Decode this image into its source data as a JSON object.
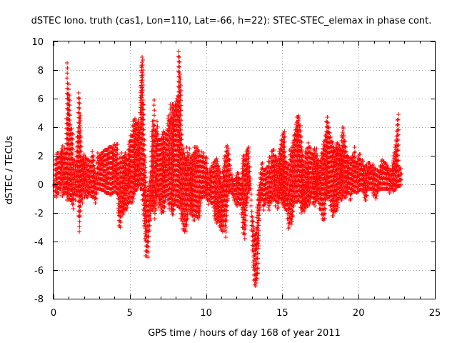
{
  "chart_data": {
    "type": "scatter",
    "title": "dSTEC Iono. truth (cas1, Lon=110, Lat=-66, h=22): STEC-STEC_elemax in phase cont.",
    "xlabel": "GPS time / hours of day 168 of year 2011",
    "ylabel": "dSTEC  / TECUs",
    "xlim": [
      0,
      25
    ],
    "ylim": [
      -8,
      10
    ],
    "x_ticks": [
      0,
      5,
      10,
      15,
      20,
      25
    ],
    "x_tick_labels": [
      "0",
      "5",
      "10",
      "15",
      "20",
      "25"
    ],
    "y_ticks": [
      -8,
      -6,
      -4,
      -2,
      0,
      2,
      4,
      6,
      8,
      10
    ],
    "y_tick_labels": [
      "-8",
      "-6",
      "-4",
      "-2",
      "0",
      "2",
      "4",
      "6",
      "8",
      "10"
    ],
    "grid": true,
    "marker": "+",
    "colors": {
      "series": "#ff0000",
      "grid": "#a0a0a0",
      "frame": "#000000"
    },
    "series": [
      {
        "name": "dSTEC",
        "x_step_hours": 0.05,
        "x_start": 0.05,
        "min_envelope": [
          0.0,
          -0.8,
          -0.5,
          -0.9,
          -0.7,
          -0.6,
          -0.6,
          -0.3,
          -0.3,
          -0.8,
          0.0,
          -0.8,
          -0.6,
          -0.7,
          -0.6,
          -0.5,
          -0.6,
          -1.1,
          -0.9,
          -1.1,
          -1.0,
          -1.1,
          -1.1,
          -1.2,
          -1.4,
          -1.7,
          -1.0,
          -0.6,
          -1.1,
          -0.8,
          -0.5,
          -0.7,
          -2.2,
          -3.3,
          -2.2,
          -1.1,
          -1.1,
          -1.3,
          -0.4,
          -0.4,
          -0.9,
          -0.7,
          -0.8,
          -0.9,
          -0.9,
          -0.7,
          -0.6,
          -0.6,
          -0.8,
          -0.8,
          -0.9,
          -0.8,
          -0.9,
          -1.0,
          -1.3,
          -1.0,
          -0.6,
          -0.3,
          -0.3,
          -0.3,
          -0.3,
          -0.3,
          -0.4,
          -0.4,
          -0.4,
          -0.4,
          -0.5,
          -0.5,
          -0.6,
          -0.6,
          -0.6,
          -0.6,
          -0.6,
          -0.7,
          -0.7,
          -0.7,
          -0.6,
          -0.6,
          -0.5,
          -0.5,
          -0.5,
          -0.5,
          -0.6,
          -0.7,
          -2.0,
          -2.9,
          -2.9,
          -3.0,
          -2.2,
          -1.9,
          -2.1,
          -2.0,
          -1.8,
          -1.7,
          -1.8,
          -1.7,
          -1.6,
          -1.3,
          -1.3,
          -1.2,
          -1.2,
          -1.2,
          -1.3,
          -1.2,
          -1.0,
          -0.7,
          -0.5,
          -0.4,
          -0.4,
          -0.3,
          -0.1,
          -0.1,
          0.0,
          -0.3,
          -0.3,
          -0.3,
          -1.1,
          -2.1,
          -2.9,
          -3.8,
          -5.0,
          -5.0,
          -4.7,
          -5.1,
          -4.0,
          -3.2,
          -2.4,
          -1.5,
          -1.8,
          -1.8,
          -1.6,
          -1.9,
          -2.4,
          -1.8,
          -1.3,
          -0.7,
          -0.8,
          -1.6,
          -1.4,
          -1.4,
          -1.8,
          -2.0,
          -1.9,
          -1.9,
          -1.9,
          -1.6,
          -1.1,
          -0.8,
          -0.8,
          -1.1,
          -1.4,
          -1.7,
          -1.3,
          -1.7,
          -1.9,
          -2.1,
          -2.1,
          -1.8,
          -1.4,
          -1.2,
          -1.4,
          -1.5,
          -1.5,
          -1.5,
          -1.6,
          -1.7,
          -2.4,
          -2.4,
          -2.6,
          -3.1,
          -3.2,
          -3.3,
          -3.2,
          -3.3,
          -2.8,
          -2.4,
          -1.8,
          -1.5,
          -1.9,
          -2.1,
          -2.0,
          -2.2,
          -2.2,
          -2.5,
          -2.5,
          -2.2,
          -1.9,
          -2.2,
          -2.3,
          -2.4,
          -2.2,
          -2.2,
          -1.3,
          -1.0,
          -0.9,
          -0.9,
          -0.8,
          -0.9,
          -0.7,
          -0.9,
          -0.9,
          -1.1,
          -1.4,
          -1.1,
          -1.1,
          -1.2,
          -1.3,
          -1.3,
          -1.3,
          -1.6,
          -2.2,
          -2.4,
          -2.5,
          -2.7,
          -2.6,
          -2.4,
          -2.6,
          -2.9,
          -3.0,
          -3.2,
          -3.2,
          -3.3,
          -3.2,
          -2.5,
          -3.2,
          -3.7,
          -2.5,
          -1.5,
          -1.0,
          -0.5,
          -0.5,
          -0.4,
          -0.5,
          -0.6,
          -0.7,
          -0.9,
          -1.1,
          -1.1,
          -1.3,
          -1.4,
          -1.5,
          -1.3,
          -1.3,
          -1.4,
          -1.4,
          -1.4,
          -2.1,
          -3.0,
          -3.4,
          -3.5,
          -3.8,
          -2.9,
          -1.6,
          -1.3,
          -0.9,
          -0.4,
          -0.4,
          -0.3,
          -1.5,
          -3.2,
          -4.6,
          -5.8,
          -6.7,
          -7.0,
          -7.1,
          -6.9,
          -6.6,
          -6.2,
          -4.3,
          -2.4,
          -1.6,
          -1.1,
          -1.0,
          -1.0,
          -1.5,
          -1.8,
          -1.4,
          -1.3,
          -1.1,
          -1.0,
          -1.3,
          -1.6,
          -1.8,
          -1.2,
          -1.3,
          -1.2,
          -1.0,
          -0.9,
          -1.1,
          -1.0,
          -1.5,
          -1.1,
          -1.2,
          -1.7,
          -1.6,
          -1.1,
          -0.9,
          -1.0,
          -1.1,
          -1.3,
          -1.4,
          -1.5,
          -1.6,
          -1.7,
          -1.8,
          -1.8,
          -2.4,
          -3.1,
          -3.0,
          -2.7,
          -2.4,
          -2.8,
          -2.6,
          -2.2,
          -1.5,
          -1.3,
          -1.2,
          -1.2,
          -1.2,
          -1.2,
          -1.1,
          -1.1,
          -1.2,
          -1.6,
          -2.0,
          -1.8,
          -1.8,
          -1.7,
          -1.9,
          -1.7,
          -1.6,
          -1.4,
          -1.5,
          -1.5,
          -1.2,
          -1.4,
          -1.2,
          -0.9,
          -0.7,
          -1.3,
          -1.3,
          -1.3,
          -1.5,
          -1.2,
          -1.0,
          -1.0,
          -1.1,
          -1.3,
          -1.7,
          -1.7,
          -1.8,
          -2.1,
          -2.4,
          -2.5,
          -2.4,
          -2.4,
          -1.1,
          -0.8,
          -0.9,
          -1.0,
          -0.9,
          -0.9,
          -1.5,
          -1.8,
          -1.8,
          -2.2,
          -2.2,
          -2.0,
          -1.8,
          -1.9,
          -1.8,
          -1.8,
          -1.6,
          -1.0,
          -0.9,
          -0.9,
          -1.0,
          -1.1,
          -0.9,
          -0.7,
          -0.9,
          -0.9,
          -0.9,
          -0.9,
          -0.7,
          -0.5,
          -0.6,
          -0.6,
          -1.1,
          -1.0,
          -0.6,
          -0.4,
          -0.4,
          -0.5,
          -0.5,
          -0.5,
          -0.5,
          -0.6,
          -0.5,
          -0.5,
          -0.4,
          -0.4,
          -0.3,
          -0.4,
          -0.4,
          -0.4,
          -0.6,
          -0.9,
          -1.1,
          -1.1,
          -0.8,
          -0.3,
          -0.2,
          -0.3,
          -0.3,
          -0.3,
          -0.3,
          -0.3,
          -0.6,
          -0.8,
          -0.7,
          -0.8,
          -1.0,
          -0.8,
          -0.5,
          -0.5,
          -0.3,
          -0.3,
          -0.3,
          -0.3,
          -0.3,
          -0.3,
          -0.3,
          -0.3,
          -0.3,
          -0.3,
          -0.3,
          -0.3,
          -0.3,
          -0.4,
          -0.6,
          -0.4,
          -0.2,
          -0.3,
          -0.3,
          -0.5,
          -0.4,
          -0.4,
          -0.3,
          -0.2,
          -0.1,
          -0.1,
          -0.1,
          -0.1,
          -0.1,
          0.0
        ],
        "max_envelope": [
          -0.1,
          1.4,
          1.7,
          2.1,
          2.2,
          2.2,
          1.9,
          1.9,
          2.1,
          2.3,
          2.5,
          2.7,
          2.2,
          2.5,
          2.5,
          2.2,
          4.6,
          8.5,
          6.3,
          7.0,
          6.2,
          4.2,
          3.9,
          3.9,
          3.5,
          1.7,
          1.7,
          1.6,
          1.4,
          2.3,
          3.3,
          3.7,
          6.4,
          6.0,
          4.8,
          3.3,
          1.7,
          1.8,
          1.9,
          2.1,
          1.9,
          1.9,
          1.8,
          1.7,
          1.7,
          1.7,
          1.6,
          1.6,
          1.6,
          1.9,
          2.3,
          2.0,
          1.7,
          1.1,
          0.8,
          0.6,
          1.5,
          2.2,
          1.9,
          2.0,
          2.0,
          2.1,
          2.2,
          2.2,
          2.3,
          2.3,
          2.4,
          2.4,
          2.4,
          2.4,
          2.4,
          2.5,
          2.6,
          2.6,
          2.6,
          2.6,
          2.5,
          2.5,
          2.7,
          2.8,
          2.7,
          2.7,
          2.8,
          2.8,
          1.4,
          1.8,
          1.5,
          1.9,
          2.2,
          1.8,
          1.9,
          1.9,
          2.0,
          2.2,
          2.0,
          1.8,
          1.7,
          2.4,
          2.8,
          3.0,
          3.4,
          3.4,
          3.4,
          4.1,
          4.4,
          4.5,
          4.6,
          4.4,
          4.2,
          4.2,
          4.5,
          4.3,
          4.0,
          6.8,
          8.3,
          8.9,
          8.7,
          5.6,
          3.1,
          1.9,
          0.5,
          -0.8,
          -0.4,
          -0.4,
          -0.1,
          0.2,
          0.8,
          2.3,
          3.7,
          4.4,
          4.2,
          5.9,
          3.7,
          3.7,
          3.9,
          4.4,
          3.5,
          3.1,
          3.1,
          3.1,
          3.2,
          3.2,
          3.5,
          3.7,
          3.6,
          3.6,
          3.5,
          3.5,
          3.8,
          4.6,
          4.8,
          4.4,
          5.6,
          4.6,
          5.4,
          5.6,
          5.6,
          5.4,
          5.5,
          5.6,
          5.8,
          6.0,
          6.2,
          9.3,
          8.9,
          7.7,
          6.9,
          3.5,
          2.7,
          2.2,
          2.5,
          2.0,
          1.8,
          1.7,
          2.6,
          2.0,
          2.0,
          2.5,
          1.8,
          1.9,
          1.8,
          2.0,
          2.1,
          2.1,
          2.6,
          2.6,
          2.5,
          2.6,
          2.4,
          2.3,
          2.3,
          2.0,
          2.0,
          2.3,
          1.9,
          2.0,
          2.2,
          1.5,
          1.8,
          1.9,
          1.8,
          1.0,
          0.8,
          0.8,
          1.0,
          1.0,
          1.2,
          1.3,
          1.5,
          1.5,
          1.6,
          1.6,
          1.7,
          1.8,
          1.6,
          1.3,
          1.1,
          0.9,
          0.8,
          0.4,
          -0.1,
          0.9,
          1.2,
          1.8,
          2.0,
          2.3,
          2.6,
          2.7,
          2.5,
          2.1,
          1.7,
          1.1,
          0.6,
          0.7,
          0.4,
          0.2,
          0.3,
          0.3,
          0.4,
          0.6,
          0.8,
          0.8,
          0.7,
          0.4,
          0.3,
          -0.1,
          0.8,
          1.8,
          2.0,
          2.0,
          1.7,
          2.1,
          2.3,
          2.4,
          2.5,
          2.6,
          1.2,
          0.4,
          -0.3,
          -1.9,
          -2.3,
          -2.6,
          -3.2,
          -3.6,
          -3.5,
          -3.1,
          -1.6,
          -0.7,
          -0.4,
          -0.1,
          0.8,
          0.7,
          1.4,
          1.5,
          1.0,
          1.0,
          1.0,
          1.0,
          1.1,
          1.2,
          1.2,
          1.6,
          1.9,
          1.1,
          1.8,
          2.3,
          2.3,
          2.4,
          2.4,
          1.9,
          2.0,
          1.8,
          1.7,
          1.6,
          1.8,
          2.3,
          2.5,
          2.8,
          3.1,
          3.4,
          3.5,
          3.6,
          3.7,
          1.9,
          1.6,
          1.5,
          1.4,
          1.4,
          1.3,
          2.4,
          2.4,
          2.3,
          2.6,
          2.9,
          3.4,
          3.5,
          3.8,
          4.2,
          4.7,
          4.7,
          4.8,
          4.6,
          4.1,
          4.1,
          3.3,
          2.4,
          2.0,
          1.4,
          1.3,
          2.3,
          2.2,
          2.5,
          2.5,
          2.9,
          2.6,
          2.6,
          2.5,
          2.2,
          2.1,
          2.0,
          2.4,
          2.5,
          2.3,
          1.9,
          2.5,
          2.0,
          1.7,
          1.5,
          1.2,
          1.6,
          2.0,
          2.2,
          2.5,
          2.8,
          3.0,
          3.4,
          3.5,
          4.4,
          4.7,
          4.3,
          4.0,
          3.6,
          3.3,
          3.3,
          3.0,
          2.9,
          2.6,
          2.4,
          2.3,
          2.6,
          2.8,
          2.9,
          2.8,
          2.7,
          2.7,
          2.5,
          2.4,
          3.4,
          4.0,
          3.9,
          3.4,
          3.0,
          2.6,
          2.3,
          2.0,
          1.8,
          1.9,
          1.8,
          1.8,
          1.8,
          1.8,
          2.0,
          2.0,
          2.2,
          2.6,
          1.6,
          1.4,
          1.5,
          1.8,
          2.0,
          2.1,
          2.1,
          1.7,
          1.5,
          1.7,
          1.6,
          1.1,
          1.1,
          1.3,
          1.3,
          1.3,
          1.5,
          1.5,
          1.5,
          1.3,
          1.2,
          1.2,
          1.3,
          1.4,
          1.2,
          1.1,
          1.1,
          1.0,
          1.0,
          0.9,
          0.9,
          0.9,
          1.3,
          1.2,
          1.6,
          1.7,
          1.6,
          1.6,
          1.5,
          1.5,
          1.4,
          1.3,
          1.2,
          1.1,
          1.0,
          1.0,
          0.9,
          1.0,
          1.3,
          1.5,
          2.0,
          2.2,
          2.6,
          3.1,
          3.7,
          4.5,
          4.9,
          1.2,
          1.1,
          1.1,
          1.1,
          0.5,
          0.4,
          0.3
        ]
      }
    ]
  }
}
